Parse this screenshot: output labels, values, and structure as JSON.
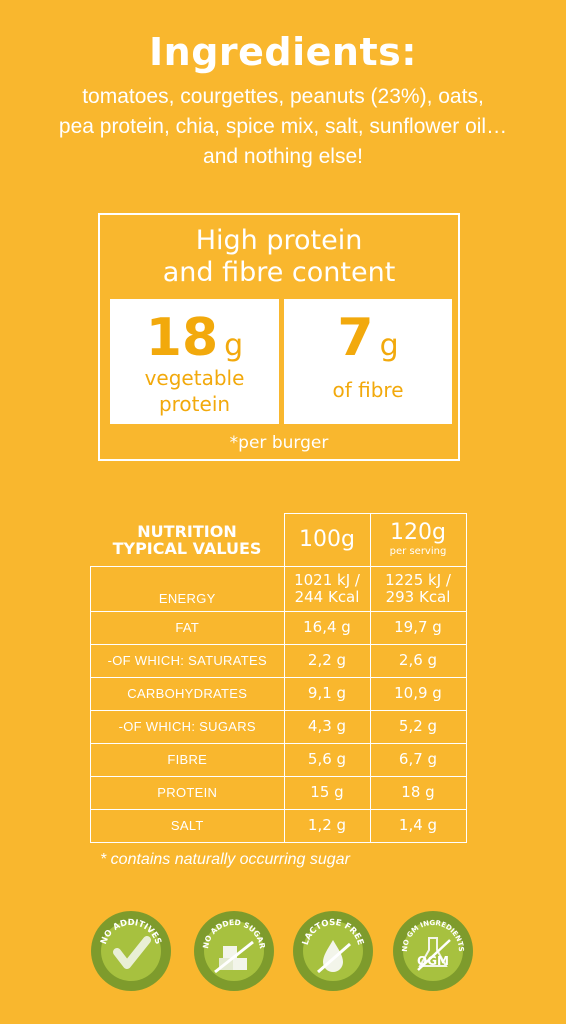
{
  "title": "Ingredients:",
  "ingredients": {
    "line1": "tomatoes, courgettes, peanuts (23%), oats,",
    "line2": "pea protein, chia, spice mix, salt, sunflower oil…",
    "line3": "and nothing else!"
  },
  "claim": {
    "title_line1": "High protein",
    "title_line2": "and fibre content",
    "protein": {
      "value": "18",
      "unit": "g",
      "desc_line1": "vegetable",
      "desc_line2": "protein"
    },
    "fibre": {
      "value": "7",
      "unit": "g",
      "desc": "of fibre"
    },
    "note": "*per burger"
  },
  "nutrition": {
    "header_line1": "NUTRITION",
    "header_line2": "TYPICAL VALUES",
    "col1": "100g",
    "col2": "120g",
    "col2_sub": "per serving",
    "rows": [
      {
        "name": "ENERGY",
        "v1a": "1021 kJ /",
        "v1b": "244 Kcal",
        "v2a": "1225 kJ /",
        "v2b": "293 Kcal"
      },
      {
        "name": "FAT",
        "v1": "16,4 g",
        "v2": "19,7 g"
      },
      {
        "name": "-OF WHICH: SATURATES",
        "v1": "2,2 g",
        "v2": "2,6 g"
      },
      {
        "name": "CARBOHYDRATES",
        "v1": "9,1 g",
        "v2": "10,9 g"
      },
      {
        "name": "-OF WHICH: SUGARS",
        "v1": "4,3 g",
        "v2": "5,2 g"
      },
      {
        "name": "FIBRE",
        "v1": "5,6 g",
        "v2": "6,7 g"
      },
      {
        "name": "PROTEIN",
        "v1": "15 g",
        "v2": "18 g"
      },
      {
        "name": "SALT",
        "v1": "1,2 g",
        "v2": "1,4 g"
      }
    ],
    "footnote": "* contains naturally occurring sugar"
  },
  "badges": [
    {
      "label": "NO ADDITIVES",
      "icon": "checkmark-icon"
    },
    {
      "label": "NO ADDED SUGAR",
      "icon": "sugar-cubes-icon"
    },
    {
      "label": "LACTOSE FREE",
      "icon": "milk-drop-icon"
    },
    {
      "label": "NO GM INGREDIENTS",
      "icon": "flask-ogm-icon",
      "inner_text": "OGM"
    }
  ],
  "colors": {
    "background": "#F9B72E",
    "accent": "#F2A90C",
    "badge_dark": "#7E9B2C",
    "badge_light": "#A7C13F",
    "white": "#ffffff"
  }
}
